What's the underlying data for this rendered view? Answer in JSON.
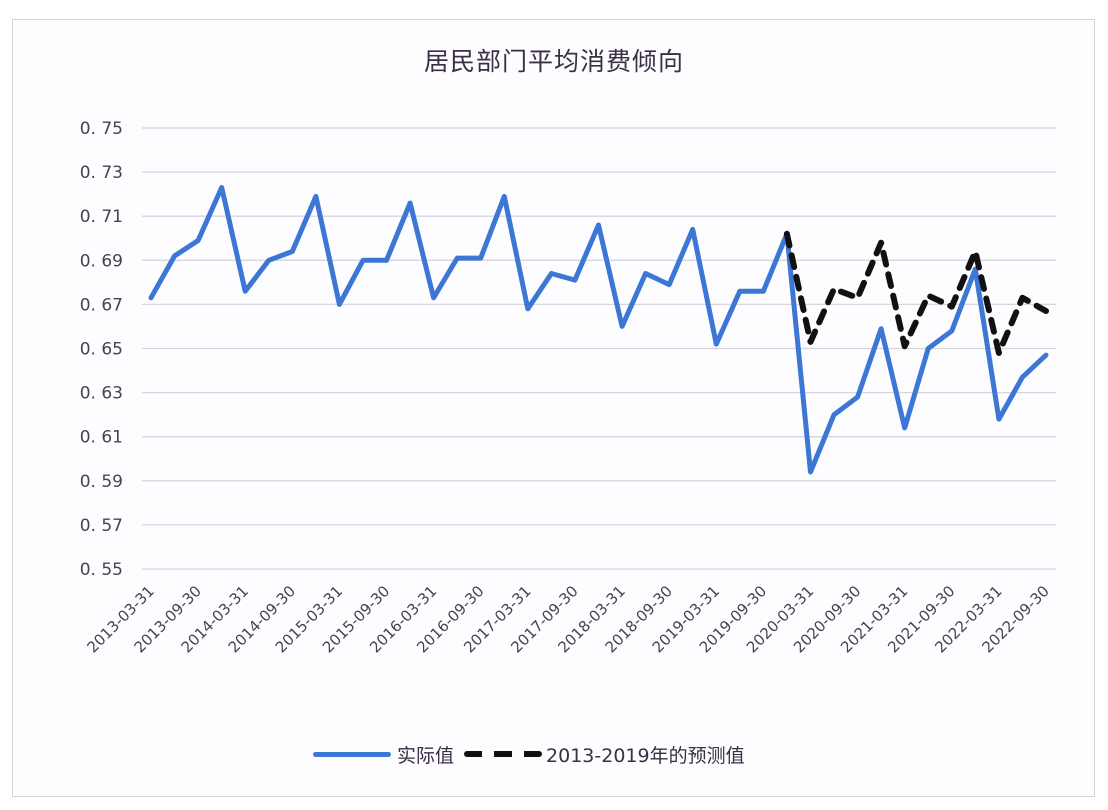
{
  "chart_data": {
    "type": "line",
    "title": "居民部门平均消费倾向",
    "xlabel": "",
    "ylabel": "",
    "ylim": [
      0.55,
      0.75
    ],
    "yticks": [
      "0.75",
      "0.73",
      "0.71",
      "0.69",
      "0.67",
      "0.65",
      "0.63",
      "0.61",
      "0.59",
      "0.57",
      "0.55"
    ],
    "grid": true,
    "legend_position": "bottom",
    "x": [
      "2013-03-31",
      "2013-06-30",
      "2013-09-30",
      "2013-12-31",
      "2014-03-31",
      "2014-06-30",
      "2014-09-30",
      "2014-12-31",
      "2015-03-31",
      "2015-06-30",
      "2015-09-30",
      "2015-12-31",
      "2016-03-31",
      "2016-06-30",
      "2016-09-30",
      "2016-12-31",
      "2017-03-31",
      "2017-06-30",
      "2017-09-30",
      "2017-12-31",
      "2018-03-31",
      "2018-06-30",
      "2018-09-30",
      "2018-12-31",
      "2019-03-31",
      "2019-06-30",
      "2019-09-30",
      "2019-12-31",
      "2020-03-31",
      "2020-06-30",
      "2020-09-30",
      "2020-12-31",
      "2021-03-31",
      "2021-06-30",
      "2021-09-30",
      "2021-12-31",
      "2022-03-31",
      "2022-06-30",
      "2022-09-30"
    ],
    "xtick_labels": [
      "2013-03-31",
      "2013-09-30",
      "2014-03-31",
      "2014-09-30",
      "2015-03-31",
      "2015-09-30",
      "2016-03-31",
      "2016-09-30",
      "2017-03-31",
      "2017-09-30",
      "2018-03-31",
      "2018-09-30",
      "2019-03-31",
      "2019-09-30",
      "2020-03-31",
      "2020-09-30",
      "2021-03-31",
      "2021-09-30",
      "2022-03-31",
      "2022-09-30"
    ],
    "series": [
      {
        "name": "实际值",
        "color": "#3c77d6",
        "style": "solid",
        "start_index": 0,
        "values": [
          0.673,
          0.692,
          0.699,
          0.723,
          0.676,
          0.69,
          0.694,
          0.719,
          0.67,
          0.69,
          0.69,
          0.716,
          0.673,
          0.691,
          0.691,
          0.719,
          0.668,
          0.684,
          0.681,
          0.706,
          0.66,
          0.684,
          0.679,
          0.704,
          0.652,
          0.676,
          0.676,
          0.702,
          0.594,
          0.62,
          0.628,
          0.659,
          0.614,
          0.65,
          0.658,
          0.686,
          0.618,
          0.637,
          0.647
        ]
      },
      {
        "name": "2013-2019年的预测值",
        "color": "#111111",
        "style": "dashed",
        "start_index": 27,
        "values": [
          0.702,
          0.653,
          0.677,
          0.673,
          0.698,
          0.651,
          0.674,
          0.669,
          0.694,
          0.648,
          0.673,
          0.667
        ]
      }
    ]
  },
  "legend": {
    "actual_label": "实际值",
    "forecast_label": "2013-2019年的预测值"
  }
}
